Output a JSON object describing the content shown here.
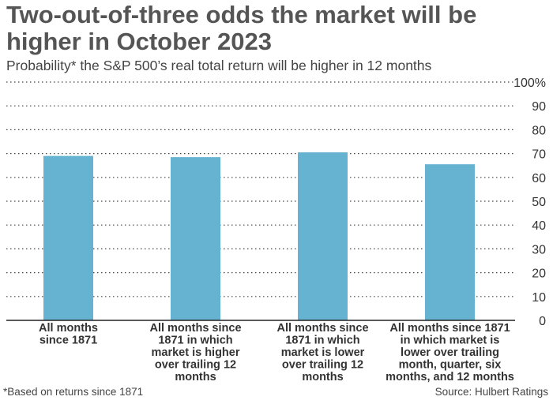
{
  "title": "Two-out-of-three odds the market will be higher in October 2023",
  "subtitle": "Probability* the S&P 500’s real total return will be higher in 12 months",
  "footnote": "*Based on returns since 1871",
  "source": "Source: Hulbert Ratings",
  "colors": {
    "bar": "#66b2d1",
    "grid": "#444444",
    "text": "#333333"
  },
  "chart_data": {
    "type": "bar",
    "categories": [
      [
        "All months",
        "since 1871"
      ],
      [
        "All months since",
        "1871 in which",
        "market is higher",
        "over trailing 12",
        "months"
      ],
      [
        "All months since",
        "1871 in which",
        "market is lower",
        "over trailing 12",
        "months"
      ],
      [
        "All months since 1871",
        "in which market is",
        "lower over trailing",
        "month, quarter, six",
        "months, and 12 months"
      ]
    ],
    "values": [
      69,
      68.5,
      70.5,
      65.5
    ],
    "ylim": [
      0,
      100
    ],
    "yticks": [
      0,
      10,
      20,
      30,
      40,
      50,
      60,
      70,
      80,
      90,
      100
    ],
    "ytick_labels": [
      "0",
      "10",
      "20",
      "30",
      "40",
      "50",
      "60",
      "70",
      "80",
      "90",
      "100%"
    ],
    "grid": true,
    "gridline_style": "dotted",
    "y_axis_side": "right"
  }
}
